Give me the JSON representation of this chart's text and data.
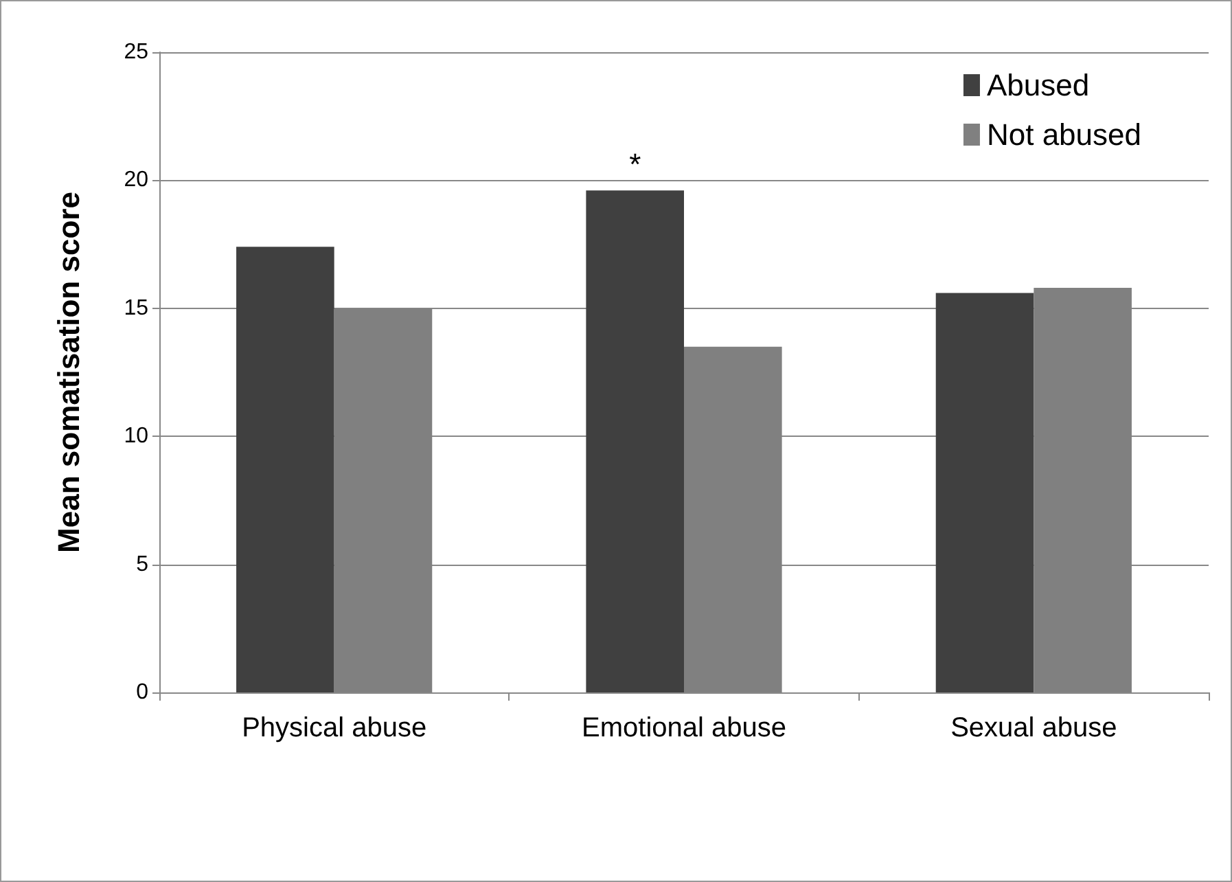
{
  "chart_data": {
    "type": "bar",
    "ylabel": "Mean somatisation score",
    "categories": [
      "Physical abuse",
      "Emotional abuse",
      "Sexual abuse"
    ],
    "series": [
      {
        "name": "Abused",
        "color": "#404040",
        "values": [
          17.4,
          19.6,
          15.6
        ]
      },
      {
        "name": "Not abused",
        "color": "#808080",
        "values": [
          15.0,
          13.5,
          15.8
        ]
      }
    ],
    "ylim": [
      0,
      25
    ],
    "yticks": [
      0,
      5,
      10,
      15,
      20,
      25
    ],
    "grid": "y",
    "legend": "top right",
    "annotations": [
      {
        "text": "*",
        "x": "Emotional abuse",
        "y": 19.6
      }
    ]
  }
}
